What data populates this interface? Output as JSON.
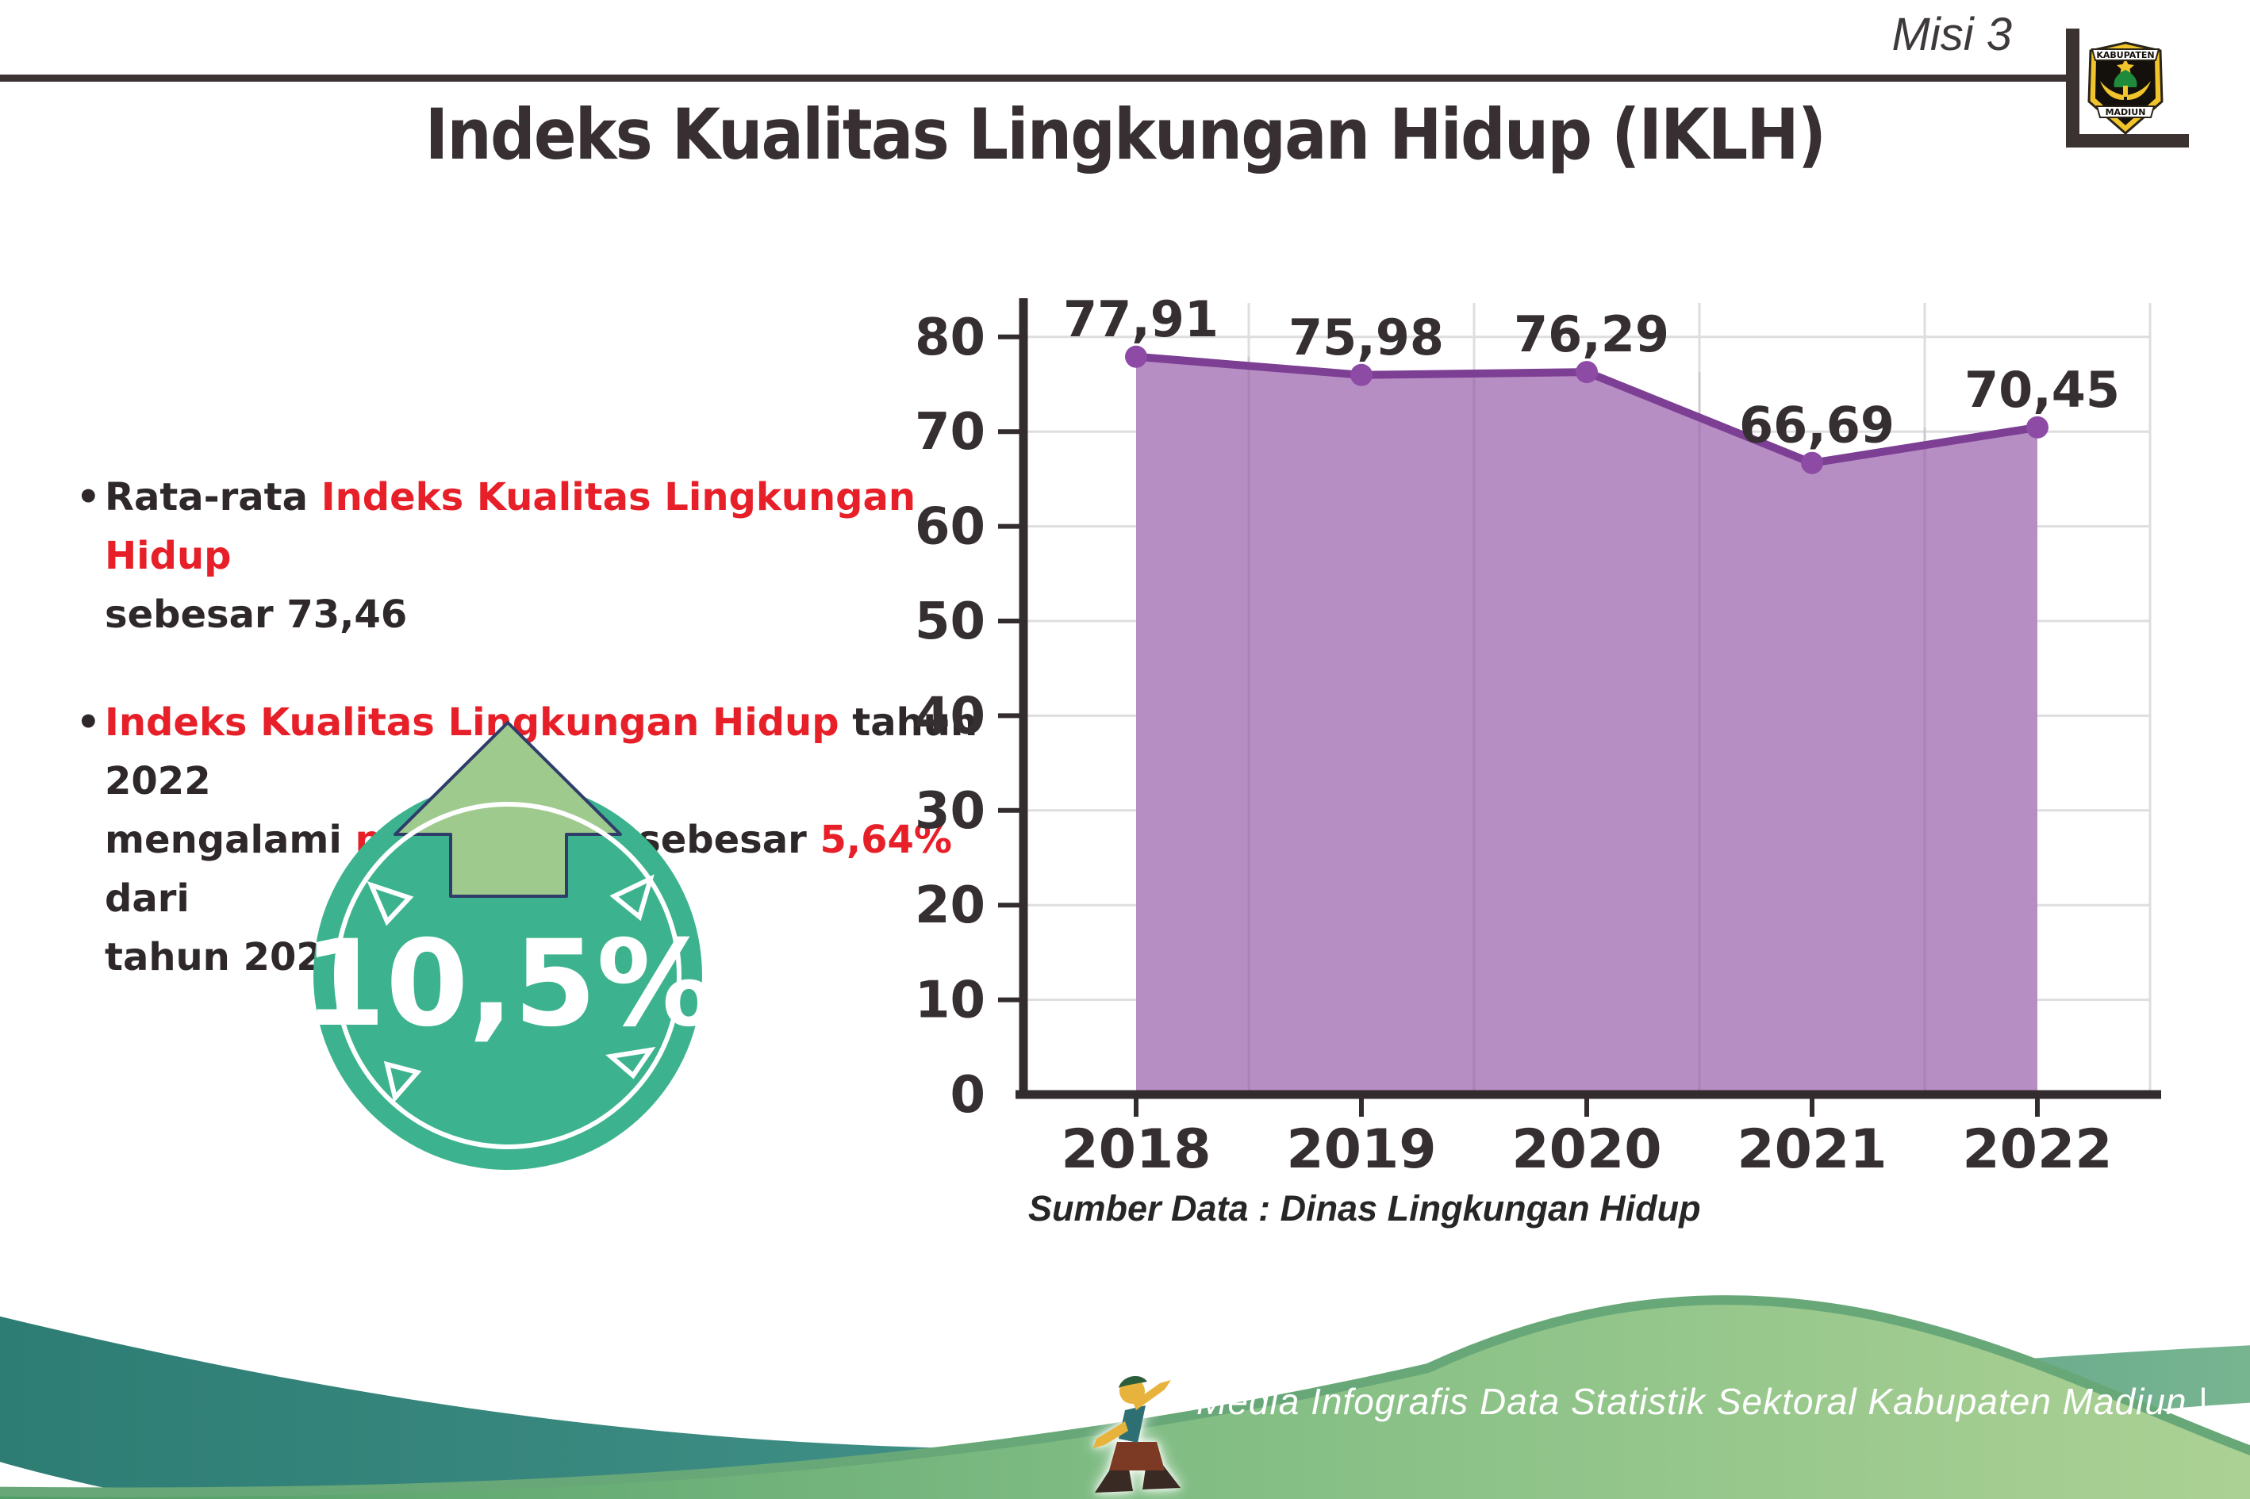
{
  "header": {
    "misi": "Misi 3",
    "title": "Indeks Kualitas Lingkungan Hidup (IKLH)",
    "logo_top": "KABUPATEN",
    "logo_bottom": "MADIUN"
  },
  "bullets": [
    {
      "lines": [
        [
          "Rata-rata ",
          "Indeks Kualitas Lingkungan Hidup"
        ],
        [
          "sebesar 73,46"
        ]
      ]
    },
    {
      "lines": [
        [
          "Indeks Kualitas Lingkungan Hidup",
          " tahun 2022"
        ],
        [
          "mengalami ",
          "peningkatan",
          " sebesar ",
          "5,64%",
          " dari"
        ],
        [
          "tahun 2021"
        ]
      ]
    }
  ],
  "badge": {
    "value": "10,5%"
  },
  "chart_data": {
    "type": "area",
    "categories": [
      "2018",
      "2019",
      "2020",
      "2021",
      "2022"
    ],
    "values": [
      77.91,
      75.98,
      76.29,
      66.69,
      70.45
    ],
    "value_labels": [
      "77,91",
      "75,98",
      "76,29",
      "66,69",
      "70,45"
    ],
    "title": "",
    "xlabel": "",
    "ylabel": "",
    "ylim": [
      0,
      80
    ],
    "ytick_step": 10,
    "grid": true,
    "legend": "none",
    "source": "Sumber Data : Dinas Lingkungan Hidup"
  },
  "footer": {
    "credit": "Media Infografis Data Statistik Sektoral Kabupaten Madiun |"
  },
  "colors": {
    "accent_red": "#e71f28",
    "text_dark": "#2e282a",
    "line_purple": "#7c3f94",
    "marker_purple": "#8d4ba6",
    "fill_purple": "#b78ec3",
    "grid_gray": "#dedede",
    "axis_dark": "#332c2e",
    "badge_green": "#3cb38e",
    "arrow_green": "#9fca8e",
    "arrow_outline": "#2e3d69",
    "wave_teal": "#2d7c73",
    "wave_green_light": "#aed295"
  }
}
